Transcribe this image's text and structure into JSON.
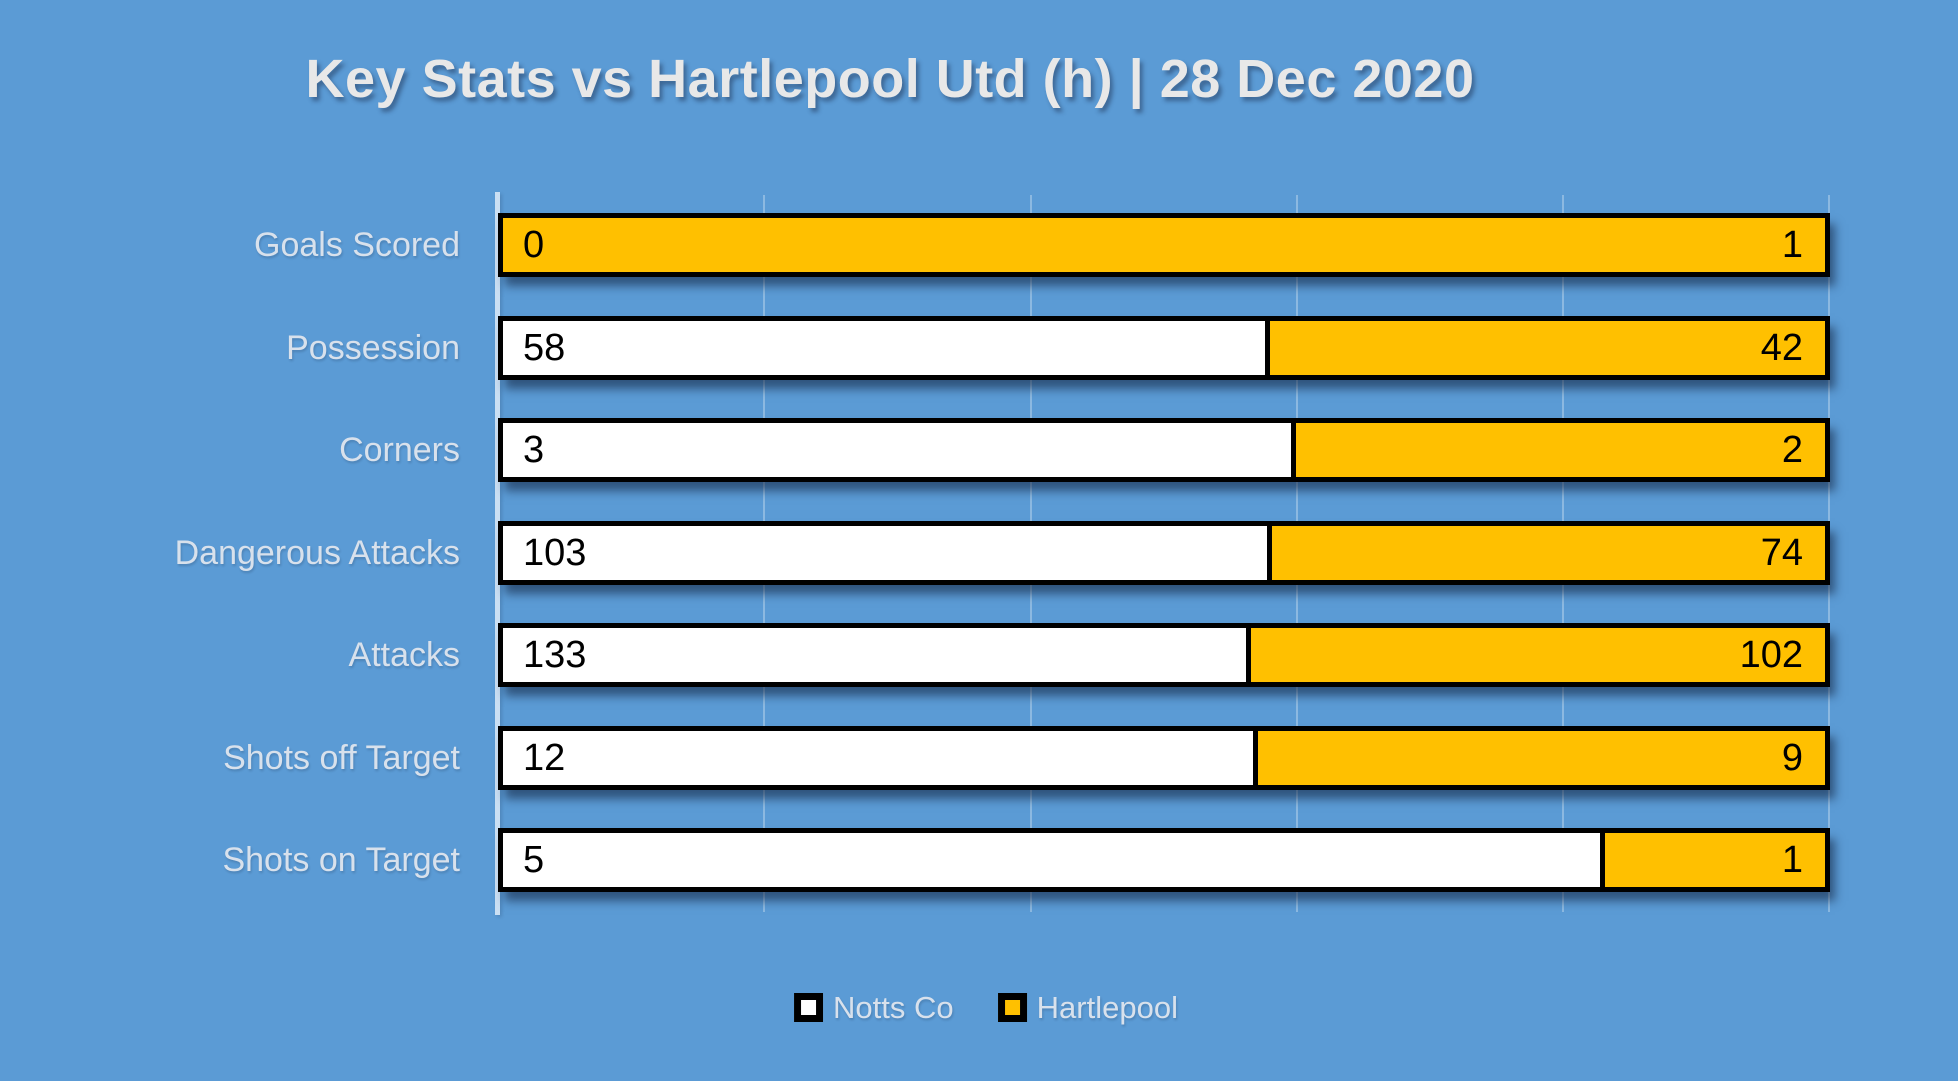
{
  "title": "Key Stats vs Hartlepool Utd (h) | 28 Dec 2020",
  "colors": {
    "background": "#5B9BD5",
    "notts": "#FFFFFF",
    "hartlepool": "#FFC000",
    "bar_border": "#000000",
    "title_text": "#E8E8E8",
    "label_text": "#D8E1EC",
    "value_text": "#000000"
  },
  "legend": {
    "items": [
      {
        "label": "Notts Co",
        "color": "#FFFFFF"
      },
      {
        "label": "Hartlepool",
        "color": "#FFC000"
      }
    ],
    "position": "bottom-center"
  },
  "chart_data": {
    "type": "bar",
    "orientation": "horizontal",
    "stacked": true,
    "percent_stacked": true,
    "title": "Key Stats vs Hartlepool Utd (h) | 28 Dec 2020",
    "categories": [
      "Goals Scored",
      "Possession",
      "Corners",
      "Dangerous Attacks",
      "Attacks",
      "Shots off Target",
      "Shots on Target"
    ],
    "series": [
      {
        "name": "Notts Co",
        "color": "#FFFFFF",
        "values": [
          0,
          58,
          3,
          103,
          133,
          12,
          5
        ]
      },
      {
        "name": "Hartlepool",
        "color": "#FFC000",
        "values": [
          1,
          42,
          2,
          74,
          102,
          9,
          1
        ]
      }
    ],
    "xlabel": "",
    "ylabel": "",
    "xlim_percent": [
      0,
      100
    ],
    "gridline_interval_percent": 20,
    "grid": true,
    "value_labels": "inside-ends"
  }
}
